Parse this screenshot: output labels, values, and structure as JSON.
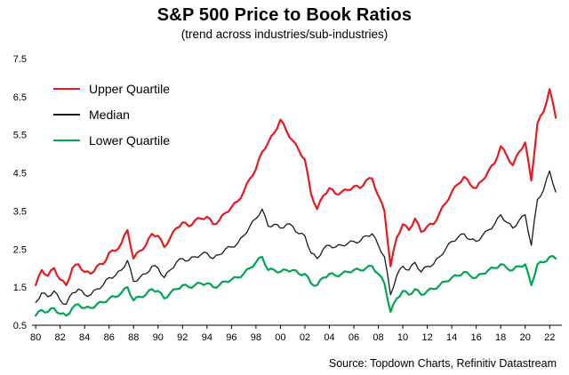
{
  "header": {
    "title": "S&P 500 Price to Book Ratios",
    "subtitle": "(trend across industries/sub-industries)"
  },
  "footer": {
    "source": "Source: Topdown Charts, Refinitiv Datastream"
  },
  "colors": {
    "upper_quartile": "#e8191f",
    "median": "#1a1a1a",
    "lower_quartile": "#00a651"
  },
  "chart_data": {
    "type": "line",
    "title": "S&P 500 Price to Book Ratios",
    "subtitle": "(trend across industries/sub-industries)",
    "xlabel": "",
    "ylabel": "",
    "grid": false,
    "legend_position": "top-left",
    "xlim": [
      1980,
      2022.5
    ],
    "ylim": [
      0.5,
      7.5
    ],
    "y_ticks": [
      0.5,
      1.5,
      2.5,
      3.5,
      4.5,
      5.5,
      6.5,
      7.5
    ],
    "x_ticks": [
      1980,
      1982,
      1984,
      1986,
      1988,
      1990,
      1992,
      1994,
      1996,
      1998,
      2000,
      2002,
      2004,
      2006,
      2008,
      2010,
      2012,
      2014,
      2016,
      2018,
      2020,
      2022
    ],
    "x_tick_labels": [
      "80",
      "82",
      "84",
      "86",
      "88",
      "90",
      "92",
      "94",
      "96",
      "98",
      "00",
      "02",
      "04",
      "06",
      "08",
      "10",
      "12",
      "14",
      "16",
      "18",
      "20",
      "22"
    ],
    "x": [
      1980,
      1980.5,
      1981,
      1981.5,
      1982,
      1982.5,
      1983,
      1983.5,
      1984,
      1984.5,
      1985,
      1985.5,
      1986,
      1986.5,
      1987,
      1987.5,
      1988,
      1988.5,
      1989,
      1989.5,
      1990,
      1990.5,
      1991,
      1991.5,
      1992,
      1992.5,
      1993,
      1993.5,
      1994,
      1994.5,
      1995,
      1995.5,
      1996,
      1996.5,
      1997,
      1997.5,
      1998,
      1998.5,
      1999,
      1999.5,
      2000,
      2000.5,
      2001,
      2001.5,
      2002,
      2002.5,
      2003,
      2003.5,
      2004,
      2004.5,
      2005,
      2005.5,
      2006,
      2006.5,
      2007,
      2007.5,
      2008,
      2008.5,
      2009,
      2009.5,
      2010,
      2010.5,
      2011,
      2011.5,
      2012,
      2012.5,
      2013,
      2013.5,
      2014,
      2014.5,
      2015,
      2015.5,
      2016,
      2016.5,
      2017,
      2017.5,
      2018,
      2018.5,
      2019,
      2019.5,
      2020,
      2020.5,
      2021,
      2021.5,
      2022,
      2022.5
    ],
    "series": [
      {
        "name": "Upper Quartile",
        "color": "#e8191f",
        "width": 2.2,
        "values": [
          1.55,
          1.95,
          1.8,
          2.0,
          1.7,
          1.55,
          2.0,
          2.1,
          1.9,
          1.85,
          2.05,
          2.1,
          2.4,
          2.45,
          2.65,
          3.0,
          2.25,
          2.45,
          2.6,
          2.9,
          2.85,
          2.55,
          2.8,
          3.05,
          3.2,
          3.1,
          3.25,
          3.3,
          3.35,
          3.15,
          3.25,
          3.45,
          3.6,
          3.75,
          4.0,
          4.35,
          4.6,
          5.05,
          5.3,
          5.55,
          5.9,
          5.6,
          5.35,
          5.1,
          4.85,
          3.95,
          3.55,
          3.9,
          4.1,
          3.95,
          4.0,
          4.05,
          4.15,
          4.1,
          4.3,
          4.35,
          3.9,
          3.5,
          2.05,
          2.8,
          3.15,
          3.0,
          3.3,
          2.95,
          3.1,
          3.15,
          3.45,
          3.7,
          4.0,
          4.2,
          4.4,
          4.2,
          4.1,
          4.3,
          4.55,
          4.75,
          5.2,
          4.95,
          4.7,
          5.05,
          5.3,
          4.3,
          5.8,
          6.1,
          6.7,
          5.95
        ]
      },
      {
        "name": "Median",
        "color": "#1a1a1a",
        "width": 1.3,
        "values": [
          1.1,
          1.35,
          1.25,
          1.4,
          1.15,
          1.05,
          1.35,
          1.45,
          1.3,
          1.3,
          1.45,
          1.55,
          1.75,
          1.8,
          1.95,
          2.2,
          1.65,
          1.75,
          1.85,
          2.05,
          2.0,
          1.75,
          1.95,
          2.15,
          2.25,
          2.2,
          2.3,
          2.35,
          2.4,
          2.25,
          2.35,
          2.5,
          2.55,
          2.65,
          2.85,
          3.1,
          3.3,
          3.55,
          3.1,
          3.15,
          3.05,
          3.15,
          3.1,
          2.9,
          2.85,
          2.4,
          2.25,
          2.5,
          2.6,
          2.55,
          2.6,
          2.65,
          2.7,
          2.7,
          2.85,
          2.9,
          2.6,
          2.3,
          1.3,
          1.8,
          2.05,
          1.95,
          2.15,
          1.9,
          2.05,
          2.1,
          2.3,
          2.5,
          2.7,
          2.8,
          2.9,
          2.75,
          2.7,
          2.85,
          3.0,
          3.15,
          3.4,
          3.2,
          3.05,
          3.25,
          3.4,
          2.6,
          3.8,
          4.05,
          4.55,
          4.0
        ]
      },
      {
        "name": "Lower Quartile",
        "color": "#00a651",
        "width": 2.2,
        "values": [
          0.75,
          0.9,
          0.85,
          0.95,
          0.8,
          0.75,
          0.95,
          1.05,
          0.95,
          0.95,
          1.05,
          1.1,
          1.2,
          1.25,
          1.35,
          1.5,
          1.15,
          1.25,
          1.3,
          1.45,
          1.4,
          1.2,
          1.35,
          1.45,
          1.55,
          1.5,
          1.55,
          1.6,
          1.6,
          1.5,
          1.55,
          1.65,
          1.7,
          1.75,
          1.85,
          2.0,
          2.15,
          2.3,
          1.95,
          1.95,
          1.9,
          1.95,
          1.95,
          1.85,
          1.85,
          1.6,
          1.55,
          1.75,
          1.85,
          1.8,
          1.85,
          1.9,
          1.95,
          1.95,
          2.0,
          2.05,
          1.85,
          1.6,
          0.85,
          1.2,
          1.4,
          1.3,
          1.45,
          1.3,
          1.4,
          1.45,
          1.55,
          1.65,
          1.75,
          1.8,
          1.9,
          1.8,
          1.75,
          1.85,
          1.95,
          2.0,
          2.1,
          2.0,
          1.95,
          2.05,
          2.1,
          1.55,
          2.1,
          2.15,
          2.3,
          2.25
        ]
      }
    ]
  }
}
